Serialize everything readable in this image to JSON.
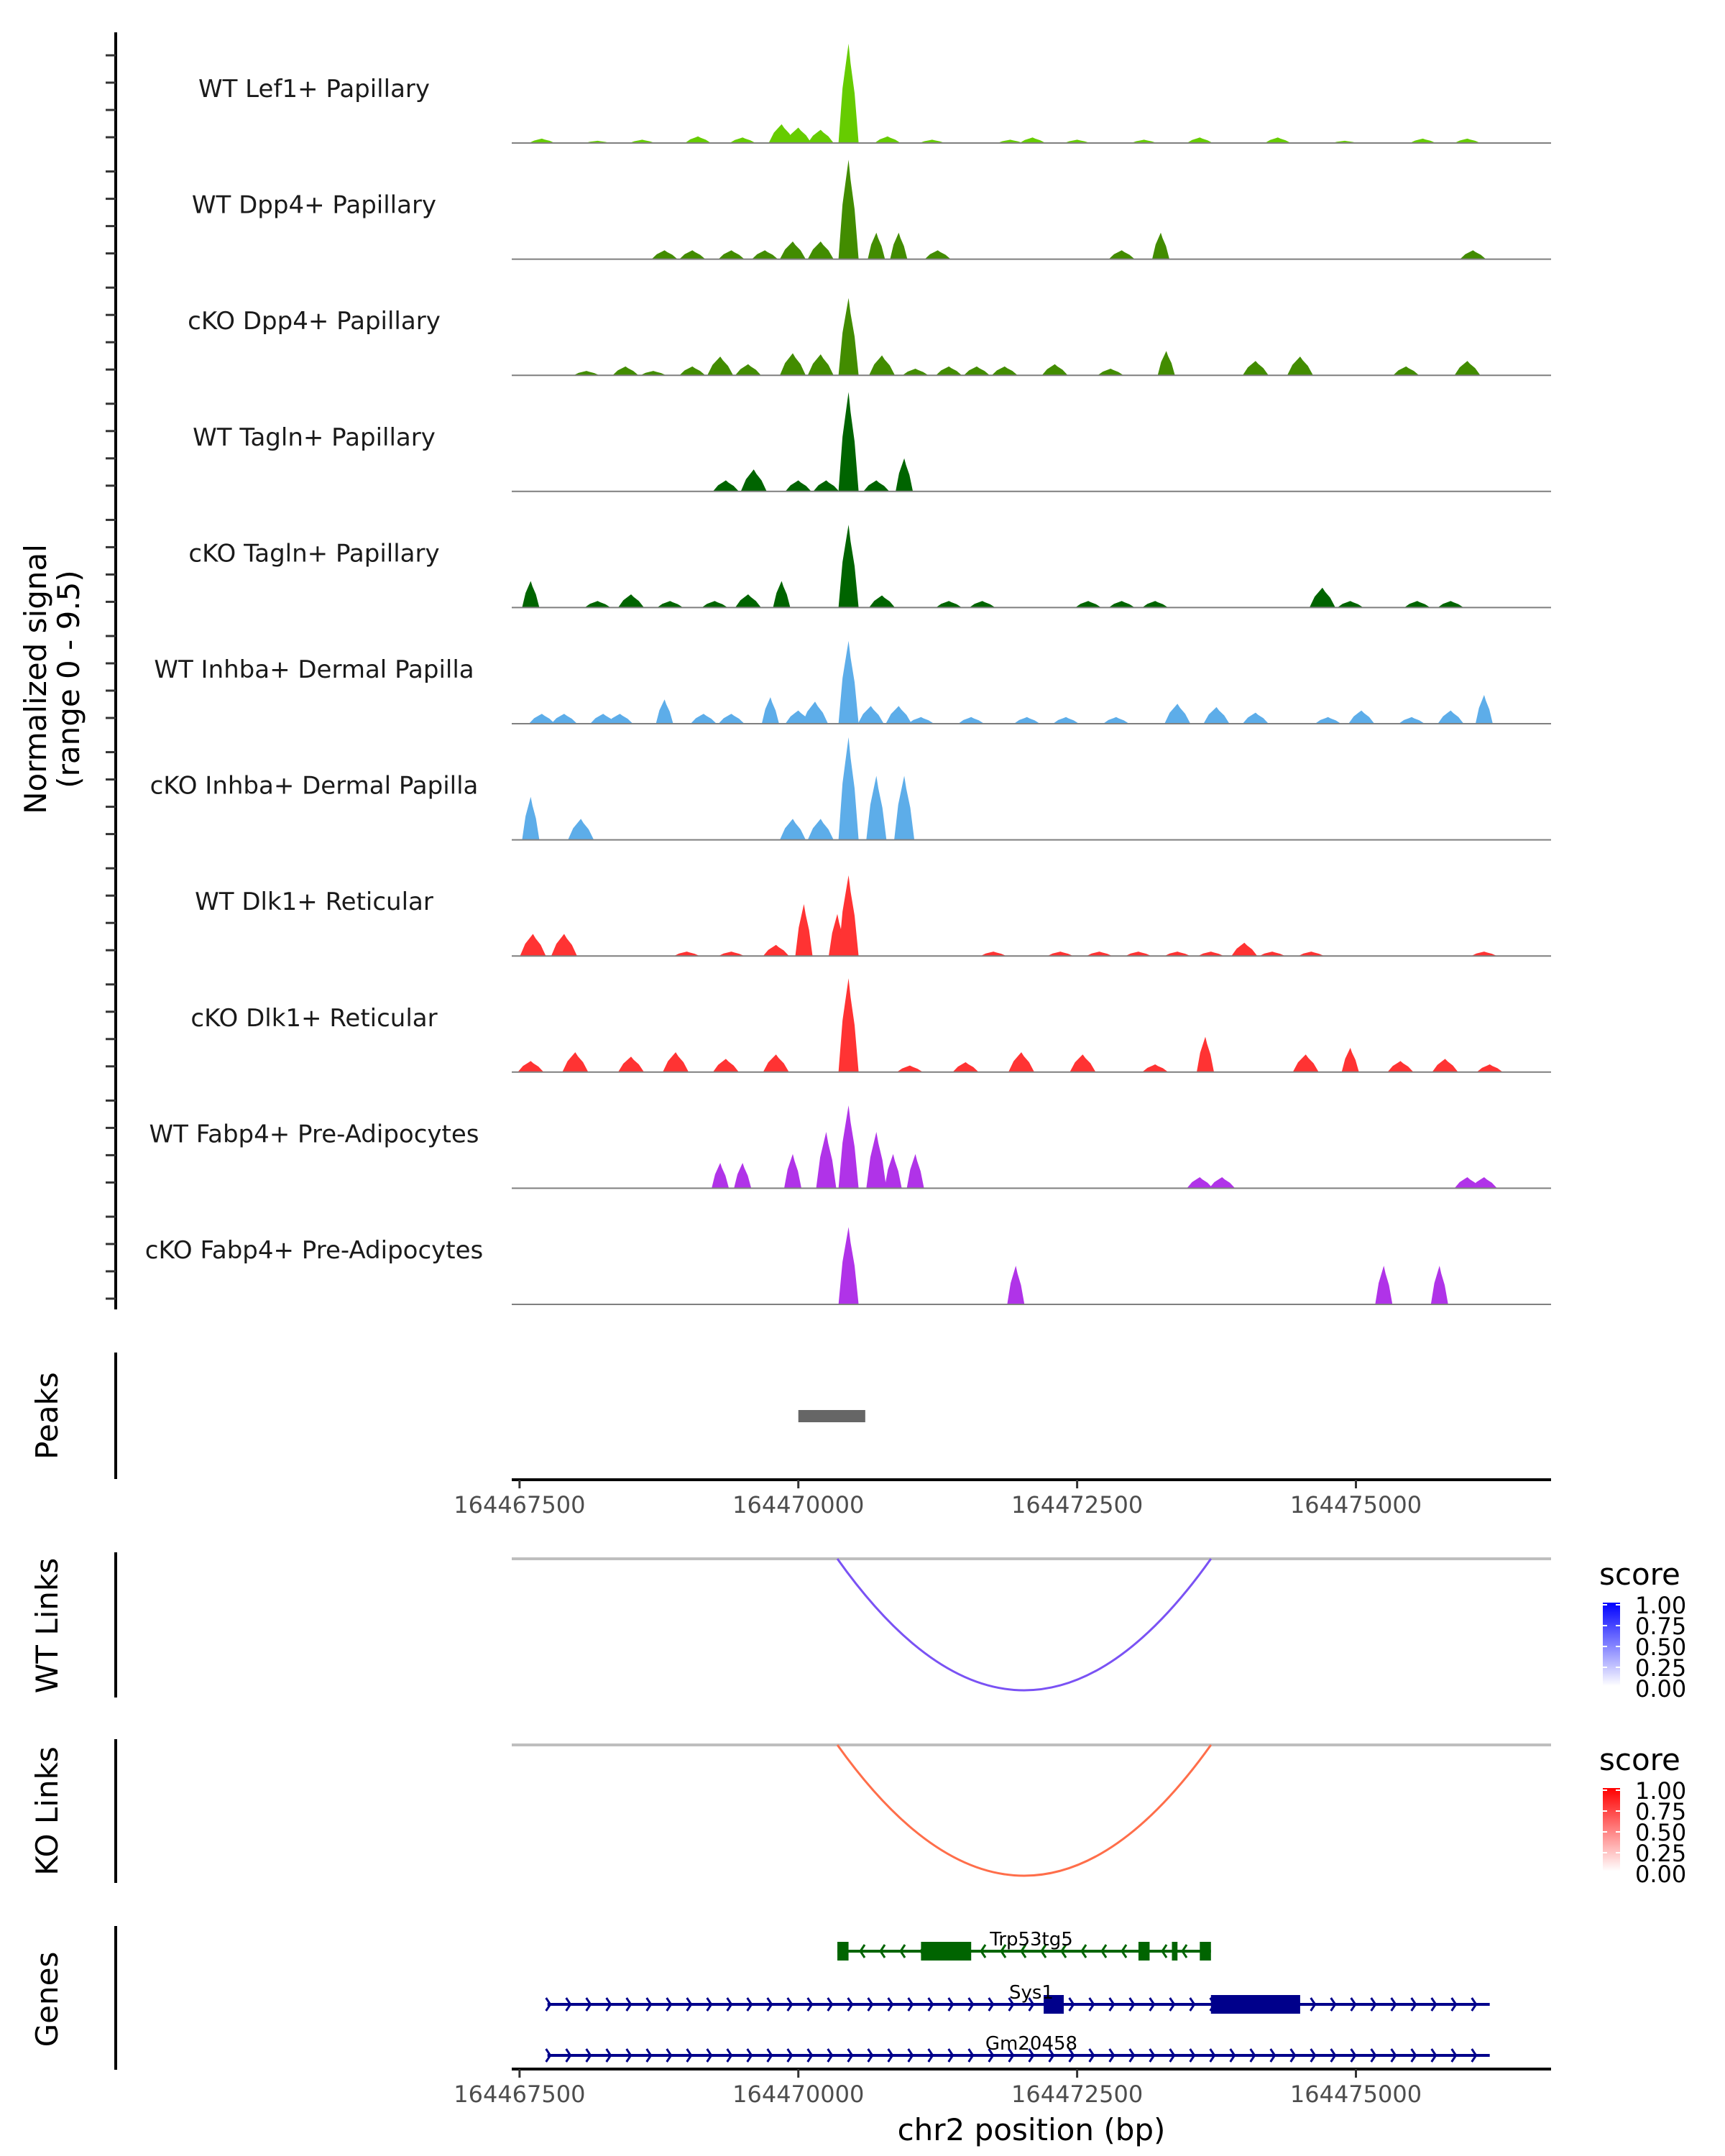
{
  "chart_data": {
    "type": "area",
    "title": "",
    "xlabel": "chr2 position (bp)",
    "ylabel": "Normalized signal\n(range 0 - 9.5)",
    "ylabel_lines": [
      "Normalized signal",
      "(range 0 - 9.5)"
    ],
    "ylim": [
      0,
      9.5
    ],
    "xlim": [
      164467430,
      164476750
    ],
    "x_ticks": [
      164467500,
      164470000,
      164472500,
      164475000
    ],
    "x_tick_labels": [
      "164467500",
      "164470000",
      "164472500",
      "164475000"
    ],
    "tracks": [
      {
        "name": "WT Lef1+ Papillary",
        "color": "#66CC00",
        "peaks": [
          [
            164467700,
            0.4
          ],
          [
            164468200,
            0.2
          ],
          [
            164468600,
            0.3
          ],
          [
            164469100,
            0.6
          ],
          [
            164469500,
            0.5
          ],
          [
            164469850,
            1.7
          ],
          [
            164470000,
            1.4
          ],
          [
            164470200,
            1.2
          ],
          [
            164470450,
            9.0
          ],
          [
            164470800,
            0.6
          ],
          [
            164471200,
            0.3
          ],
          [
            164471900,
            0.3
          ],
          [
            164472100,
            0.5
          ],
          [
            164472500,
            0.3
          ],
          [
            164473100,
            0.3
          ],
          [
            164473600,
            0.5
          ],
          [
            164474300,
            0.5
          ],
          [
            164474900,
            0.2
          ],
          [
            164475600,
            0.4
          ],
          [
            164476000,
            0.4
          ]
        ]
      },
      {
        "name": "WT Dpp4+ Papillary",
        "color": "#428C00",
        "peaks": [
          [
            164468800,
            0.8
          ],
          [
            164469050,
            0.8
          ],
          [
            164469400,
            0.8
          ],
          [
            164469700,
            0.8
          ],
          [
            164469950,
            1.6
          ],
          [
            164470200,
            1.6
          ],
          [
            164470450,
            9.0
          ],
          [
            164470700,
            2.4
          ],
          [
            164470900,
            2.4
          ],
          [
            164471250,
            0.8
          ],
          [
            164472900,
            0.8
          ],
          [
            164473250,
            2.4
          ],
          [
            164476050,
            0.8
          ]
        ]
      },
      {
        "name": "cKO Dpp4+ Papillary",
        "color": "#428C00",
        "peaks": [
          [
            164468100,
            0.4
          ],
          [
            164468450,
            0.8
          ],
          [
            164468700,
            0.4
          ],
          [
            164469050,
            0.8
          ],
          [
            164469300,
            1.7
          ],
          [
            164469550,
            1.0
          ],
          [
            164469950,
            2.0
          ],
          [
            164470200,
            1.9
          ],
          [
            164470450,
            7.0
          ],
          [
            164470750,
            1.8
          ],
          [
            164471050,
            0.6
          ],
          [
            164471350,
            0.8
          ],
          [
            164471600,
            0.8
          ],
          [
            164471850,
            0.8
          ],
          [
            164472300,
            1.0
          ],
          [
            164472800,
            0.6
          ],
          [
            164473300,
            2.2
          ],
          [
            164474100,
            1.3
          ],
          [
            164474500,
            1.7
          ],
          [
            164475450,
            0.8
          ],
          [
            164476000,
            1.3
          ]
        ]
      },
      {
        "name": "WT Tagln+ Papillary",
        "color": "#006400",
        "peaks": [
          [
            164469350,
            1.0
          ],
          [
            164469600,
            2.0
          ],
          [
            164470000,
            1.0
          ],
          [
            164470250,
            1.0
          ],
          [
            164470450,
            9.0
          ],
          [
            164470700,
            1.0
          ],
          [
            164470950,
            3.0
          ]
        ]
      },
      {
        "name": "cKO Tagln+ Papillary",
        "color": "#006400",
        "peaks": [
          [
            164467600,
            2.4
          ],
          [
            164468200,
            0.6
          ],
          [
            164468500,
            1.2
          ],
          [
            164468850,
            0.6
          ],
          [
            164469250,
            0.6
          ],
          [
            164469550,
            1.2
          ],
          [
            164469850,
            2.4
          ],
          [
            164470450,
            7.5
          ],
          [
            164470750,
            1.1
          ],
          [
            164471350,
            0.6
          ],
          [
            164471650,
            0.6
          ],
          [
            164472600,
            0.6
          ],
          [
            164472900,
            0.6
          ],
          [
            164473200,
            0.6
          ],
          [
            164474700,
            1.8
          ],
          [
            164474950,
            0.6
          ],
          [
            164475550,
            0.6
          ],
          [
            164475850,
            0.6
          ]
        ]
      },
      {
        "name": "WT Inhba+ Dermal Papilla",
        "color": "#5DADE9",
        "peaks": [
          [
            164467700,
            0.9
          ],
          [
            164467900,
            0.9
          ],
          [
            164468250,
            0.9
          ],
          [
            164468400,
            0.9
          ],
          [
            164468800,
            2.2
          ],
          [
            164469150,
            0.9
          ],
          [
            164469400,
            0.9
          ],
          [
            164469750,
            2.4
          ],
          [
            164470000,
            1.2
          ],
          [
            164470150,
            2.0
          ],
          [
            164470450,
            7.5
          ],
          [
            164470650,
            1.6
          ],
          [
            164470900,
            1.6
          ],
          [
            164471100,
            0.6
          ],
          [
            164471550,
            0.6
          ],
          [
            164472050,
            0.6
          ],
          [
            164472400,
            0.6
          ],
          [
            164472850,
            0.6
          ],
          [
            164473400,
            1.8
          ],
          [
            164473750,
            1.5
          ],
          [
            164474100,
            1.0
          ],
          [
            164474750,
            0.6
          ],
          [
            164475050,
            1.2
          ],
          [
            164475500,
            0.6
          ],
          [
            164475850,
            1.2
          ],
          [
            164476150,
            2.6
          ]
        ]
      },
      {
        "name": "cKO Inhba+ Dermal Papilla",
        "color": "#5DADE9",
        "peaks": [
          [
            164467600,
            3.9
          ],
          [
            164468050,
            1.9
          ],
          [
            164469950,
            1.9
          ],
          [
            164470200,
            1.9
          ],
          [
            164470450,
            9.3
          ],
          [
            164470700,
            5.8
          ],
          [
            164470950,
            5.8
          ]
        ]
      },
      {
        "name": "WT Dlk1+ Reticular",
        "color": "#FF3333",
        "peaks": [
          [
            164467620,
            2.0
          ],
          [
            164467900,
            2.0
          ],
          [
            164469000,
            0.4
          ],
          [
            164469400,
            0.4
          ],
          [
            164469800,
            1.0
          ],
          [
            164470050,
            4.7
          ],
          [
            164470350,
            3.8
          ],
          [
            164470450,
            7.3
          ],
          [
            164471750,
            0.4
          ],
          [
            164472350,
            0.4
          ],
          [
            164472700,
            0.4
          ],
          [
            164473050,
            0.4
          ],
          [
            164473400,
            0.4
          ],
          [
            164473700,
            0.4
          ],
          [
            164474000,
            1.2
          ],
          [
            164474250,
            0.4
          ],
          [
            164474600,
            0.4
          ],
          [
            164476150,
            0.4
          ]
        ]
      },
      {
        "name": "cKO Dlk1+ Reticular",
        "color": "#FF3333",
        "peaks": [
          [
            164467600,
            1.0
          ],
          [
            164468000,
            1.8
          ],
          [
            164468500,
            1.4
          ],
          [
            164468900,
            1.8
          ],
          [
            164469350,
            1.2
          ],
          [
            164469800,
            1.6
          ],
          [
            164470450,
            8.5
          ],
          [
            164471000,
            0.6
          ],
          [
            164471500,
            0.9
          ],
          [
            164472000,
            1.8
          ],
          [
            164472550,
            1.6
          ],
          [
            164473200,
            0.7
          ],
          [
            164473650,
            3.2
          ],
          [
            164474550,
            1.6
          ],
          [
            164474950,
            2.2
          ],
          [
            164475400,
            1.0
          ],
          [
            164475800,
            1.2
          ],
          [
            164476200,
            0.7
          ]
        ]
      },
      {
        "name": "WT Fabp4+ Pre-Adipocytes",
        "color": "#B033E8",
        "peaks": [
          [
            164469300,
            2.3
          ],
          [
            164469500,
            2.3
          ],
          [
            164469950,
            3.1
          ],
          [
            164470250,
            5.1
          ],
          [
            164470450,
            7.5
          ],
          [
            164470700,
            5.1
          ],
          [
            164470850,
            3.1
          ],
          [
            164471050,
            3.1
          ],
          [
            164473600,
            1.0
          ],
          [
            164473800,
            1.0
          ],
          [
            164476000,
            1.0
          ],
          [
            164476150,
            1.0
          ]
        ]
      },
      {
        "name": "cKO Fabp4+ Pre-Adipocytes",
        "color": "#B033E8",
        "peaks": [
          [
            164470450,
            7.0
          ],
          [
            164471950,
            3.5
          ],
          [
            164475250,
            3.5
          ],
          [
            164475750,
            3.5
          ]
        ]
      }
    ],
    "peaks_track": {
      "label": "Peaks",
      "color": "#666666",
      "regions": [
        [
          164470000,
          164470600
        ]
      ]
    },
    "links": [
      {
        "label": "WT Links",
        "start": 164470350,
        "end": 164473700,
        "score": 0.75,
        "color": "#7A52F4",
        "legend": {
          "title": "score",
          "ticks": [
            "1.00",
            "0.75",
            "0.50",
            "0.25",
            "0.00"
          ],
          "high": "#0000FF",
          "low": "#FFFFFF"
        }
      },
      {
        "label": "KO Links",
        "start": 164470350,
        "end": 164473700,
        "score": 0.75,
        "color": "#FF6E4A",
        "legend": {
          "title": "score",
          "ticks": [
            "1.00",
            "0.75",
            "0.50",
            "0.25",
            "0.00"
          ],
          "high": "#FF0000",
          "low": "#FFFFFF"
        }
      }
    ],
    "genes_track": {
      "label": "Genes",
      "genes": [
        {
          "name": "Trp53tg5",
          "strand": "-",
          "color": "#006400",
          "start": 164470350,
          "end": 164473700,
          "exons": [
            [
              164470350,
              164470450
            ],
            [
              164471100,
              164471550
            ],
            [
              164473050,
              164473150
            ],
            [
              164473350,
              164473400
            ],
            [
              164473600,
              164473700
            ]
          ]
        },
        {
          "name": "Sys1",
          "strand": "+",
          "color": "#00008B",
          "start": 164467750,
          "end": 164476200,
          "exons": [
            [
              164472200,
              164472380
            ],
            [
              164473700,
              164474500
            ]
          ]
        },
        {
          "name": "Gm20458",
          "strand": "+",
          "color": "#00008B",
          "start": 164467750,
          "end": 164476200,
          "exons": []
        }
      ]
    }
  }
}
